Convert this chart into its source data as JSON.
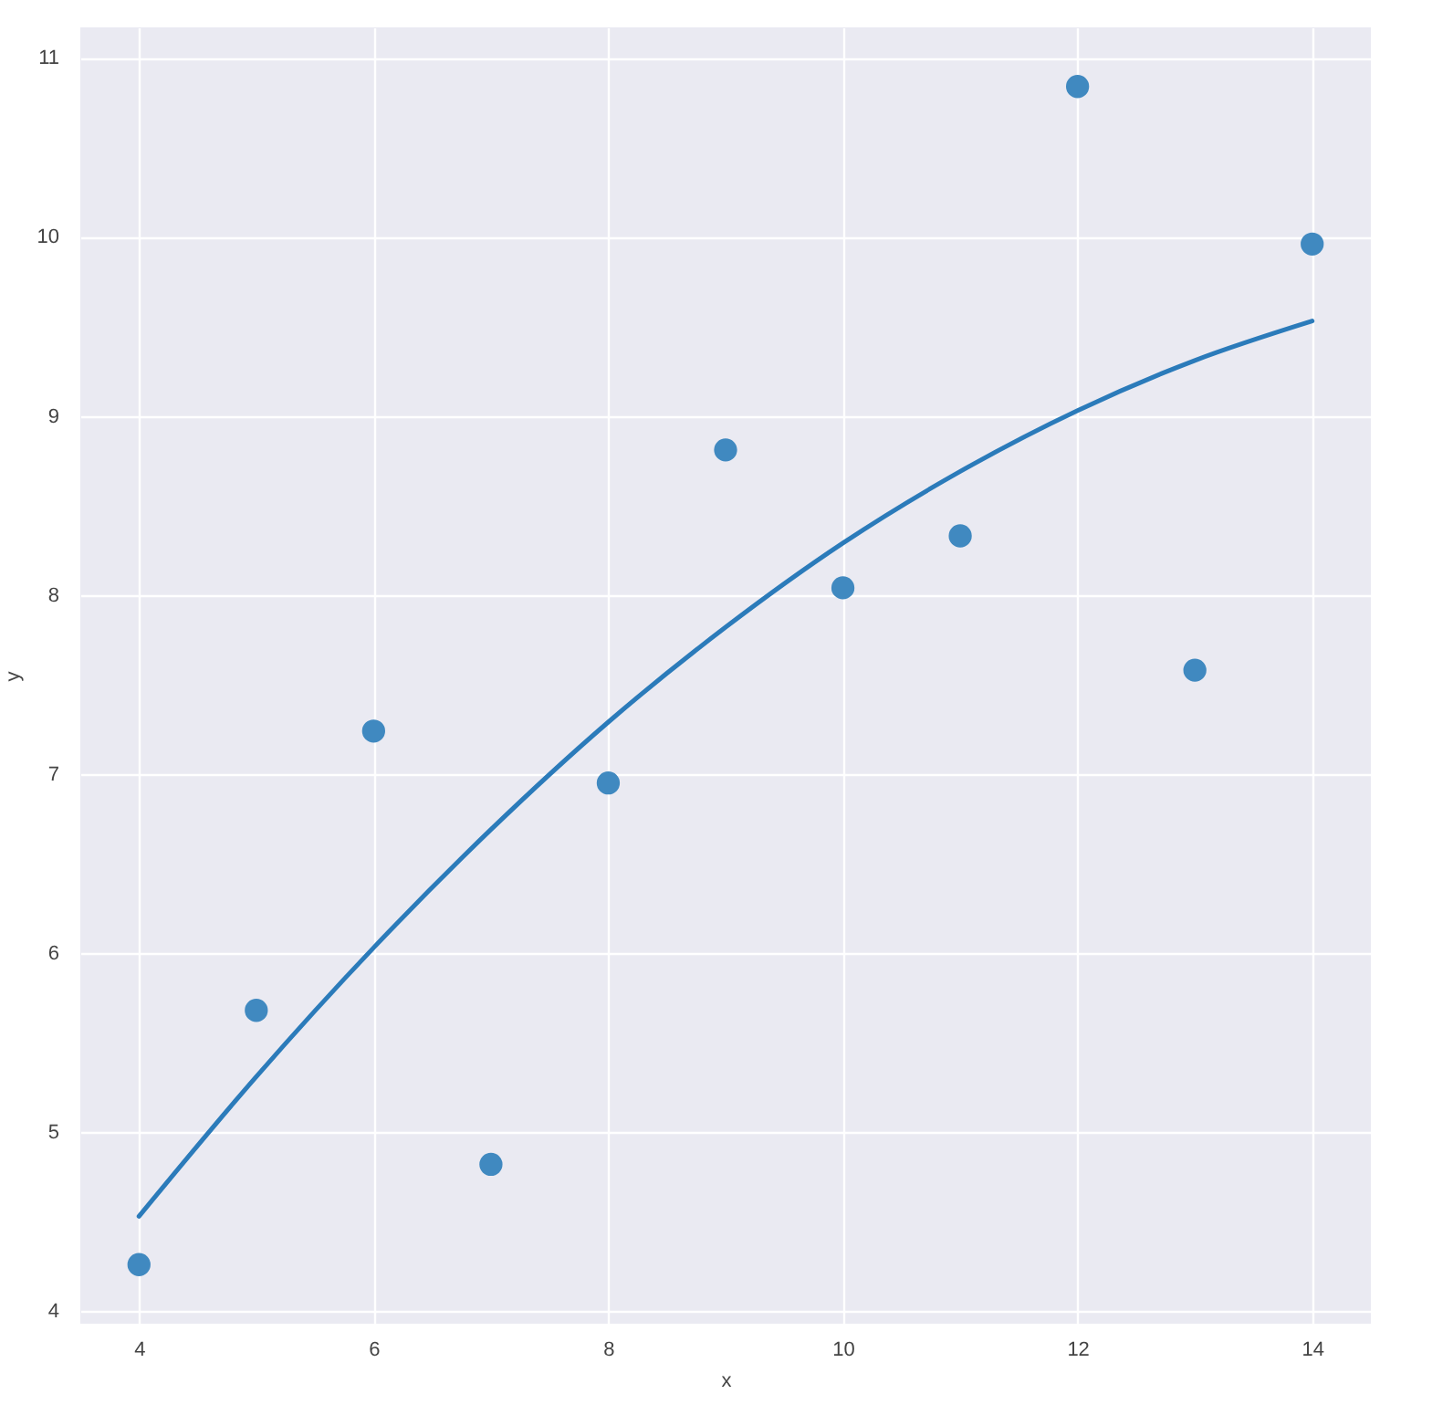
{
  "chart_data": {
    "type": "scatter",
    "xlabel": "x",
    "ylabel": "y",
    "xlim": [
      3.5,
      14.5
    ],
    "ylim": [
      3.93,
      11.17
    ],
    "xticks": [
      4,
      6,
      8,
      10,
      12,
      14
    ],
    "yticks": [
      4,
      5,
      6,
      7,
      8,
      9,
      10,
      11
    ],
    "grid": true,
    "series": [
      {
        "color": "#4089c0",
        "marker": "circle",
        "x": [
          4,
          5,
          6,
          7,
          8,
          9,
          10,
          11,
          12,
          13,
          14
        ],
        "values": [
          4.26,
          5.68,
          7.24,
          4.82,
          6.95,
          8.81,
          8.04,
          8.33,
          10.84,
          7.58,
          9.96
        ]
      },
      {
        "type": "line",
        "color": "#2b7bba",
        "line_style": "solid",
        "x": [
          4,
          5,
          6,
          7,
          8,
          9,
          10,
          11,
          12,
          13,
          14
        ],
        "values": [
          4.53,
          5.31,
          6.03,
          6.69,
          7.29,
          7.82,
          8.29,
          8.69,
          9.03,
          9.31,
          9.53
        ]
      }
    ]
  }
}
